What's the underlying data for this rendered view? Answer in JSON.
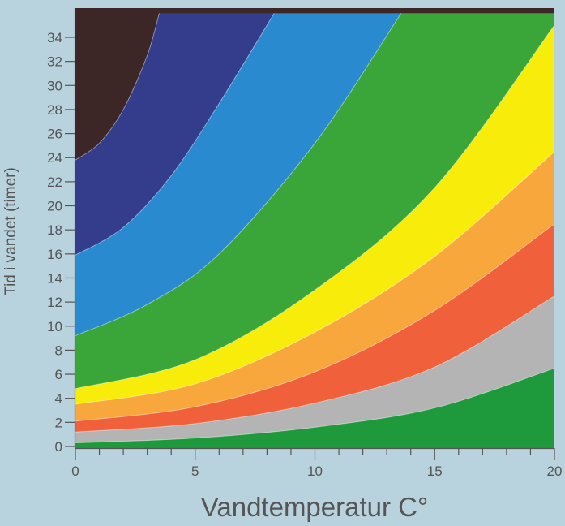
{
  "chart_data": {
    "type": "area",
    "xlabel": "Vandtemperatur C°",
    "ylabel": "Tid i vandet (timer)",
    "xlim": [
      0,
      20
    ],
    "ylim": [
      0,
      36
    ],
    "x_ticks": [
      0,
      5,
      10,
      15,
      20
    ],
    "y_ticks": [
      0,
      2,
      4,
      6,
      8,
      10,
      12,
      14,
      16,
      18,
      20,
      22,
      24,
      26,
      28,
      30,
      32,
      34
    ],
    "x_minor_step": 1,
    "boundaries": [
      {
        "x": [
          0,
          5,
          10,
          15,
          20
        ],
        "y": [
          0.3,
          0.7,
          1.6,
          3.2,
          6.5
        ]
      },
      {
        "x": [
          0,
          5,
          10,
          15,
          20
        ],
        "y": [
          1.2,
          1.9,
          3.6,
          6.6,
          12.5
        ]
      },
      {
        "x": [
          0,
          5,
          10,
          15,
          20
        ],
        "y": [
          2.1,
          3.3,
          6.2,
          11.3,
          18.5
        ]
      },
      {
        "x": [
          0,
          5,
          10,
          15,
          20
        ],
        "y": [
          3.5,
          5.2,
          9.5,
          15.8,
          24.5
        ]
      },
      {
        "x": [
          0,
          5,
          10,
          15,
          20
        ],
        "y": [
          4.8,
          7.2,
          13.0,
          21.5,
          35.0
        ]
      },
      {
        "x": [
          0,
          3,
          6,
          10,
          13.6
        ],
        "y": [
          9.2,
          11.8,
          16.0,
          25.2,
          36.0
        ]
      },
      {
        "x": [
          0,
          2,
          4,
          6,
          8.3
        ],
        "y": [
          15.9,
          18.2,
          22.5,
          28.5,
          36.0
        ]
      },
      {
        "x": [
          0,
          1,
          2,
          3,
          3.5
        ],
        "y": [
          23.8,
          25.2,
          28.0,
          32.5,
          36.0
        ]
      }
    ],
    "band_colors": [
      "#1e9a3c",
      "#b4b4b4",
      "#f0603a",
      "#f8a73c",
      "#f8ec0a",
      "#3aa63a",
      "#2a8ad0",
      "#343c8c",
      "#3c2626"
    ]
  }
}
